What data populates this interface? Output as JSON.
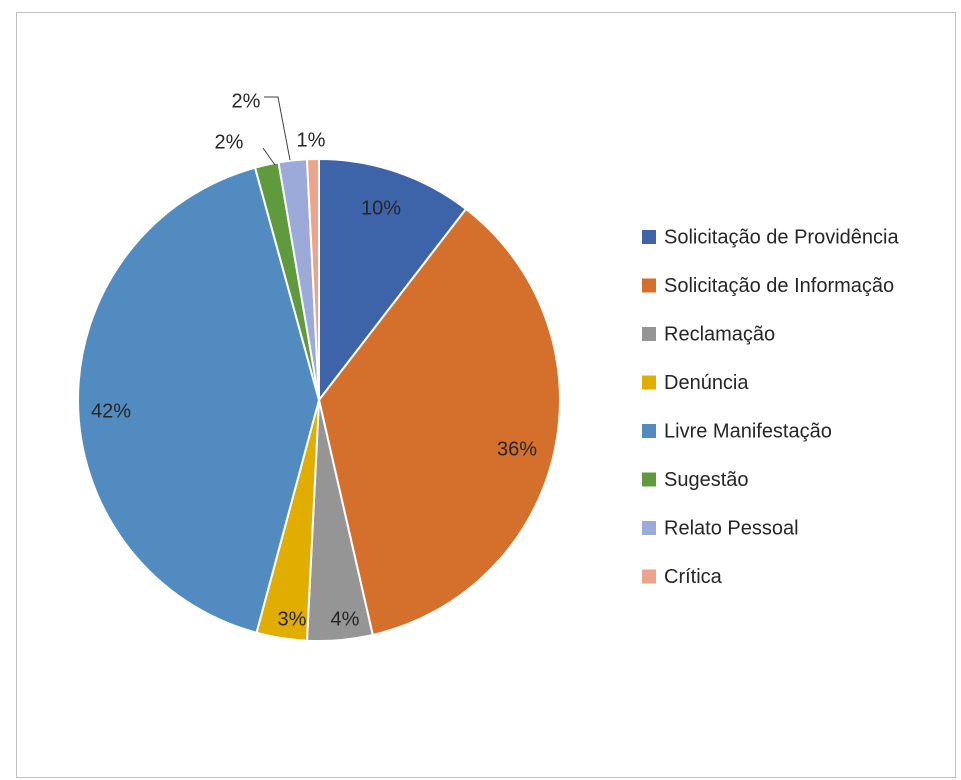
{
  "chart_data": {
    "type": "pie",
    "title": "",
    "categories": [
      "Solicitação de Providência",
      "Solicitação de Informação",
      "Reclamação",
      "Denúncia",
      "Livre Manifestação",
      "Sugestão",
      "Relato Pessoal",
      "Crítica"
    ],
    "values": [
      10.5,
      36.2,
      4.4,
      3.4,
      41.8,
      1.6,
      1.9,
      0.8
    ],
    "labels": [
      "10%",
      "36%",
      "4%",
      "3%",
      "42%",
      "2%",
      "2%",
      "1%"
    ],
    "colors": [
      "#3d63a9",
      "#d4702b",
      "#959595",
      "#e0ad00",
      "#528bc0",
      "#5f9b3c",
      "#9baad8",
      "#eca58a"
    ],
    "legend_position": "right",
    "start_angle": "12 o'clock",
    "direction": "clockwise"
  }
}
